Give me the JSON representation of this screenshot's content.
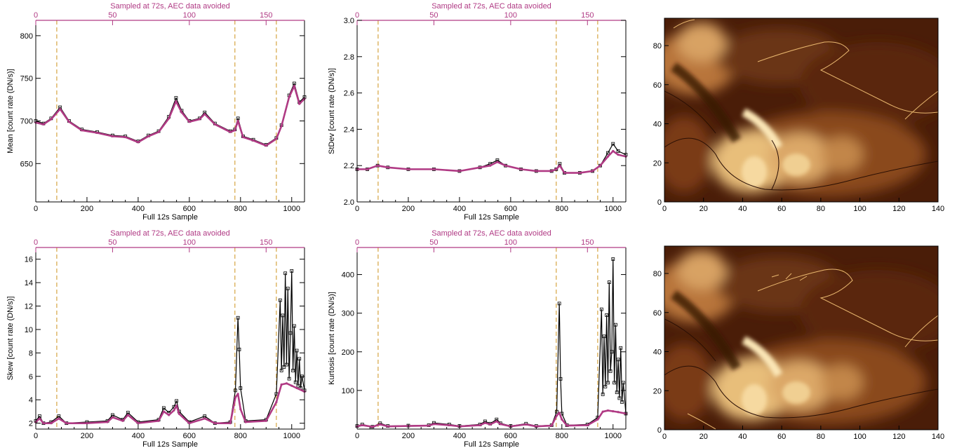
{
  "colors": {
    "axis": "#000000",
    "sampled": "#b03a84",
    "full": "#000000",
    "event_line": "#d6a543",
    "image_dark": "#3a1505",
    "image_mid": "#8a4a1c",
    "image_bright": "#f2d49a",
    "contour_light": "#e8b66e",
    "contour_dark": "#2a0f04"
  },
  "chart_data": [
    {
      "id": "mean",
      "type": "line",
      "top_label": "Sampled at 72s, AEC data avoided",
      "xlabel": "Full 12s Sample",
      "ylabel": "Mean [count rate (DN/s)]",
      "xlim": [
        0,
        1050
      ],
      "ylim": [
        605,
        818
      ],
      "xticks": [
        0,
        200,
        400,
        600,
        800,
        1000
      ],
      "yticks": [
        650,
        700,
        750,
        800
      ],
      "top_xlim": [
        0,
        175
      ],
      "top_xticks": [
        0,
        50,
        100,
        150
      ],
      "vlines": [
        82,
        778,
        940
      ],
      "series": [
        {
          "style": "full",
          "x": [
            0,
            30,
            60,
            95,
            130,
            180,
            240,
            300,
            350,
            400,
            440,
            480,
            520,
            548,
            570,
            600,
            640,
            660,
            700,
            760,
            778,
            790,
            810,
            850,
            900,
            940,
            960,
            990,
            1010,
            1030,
            1050
          ],
          "y": [
            700,
            697,
            703,
            716,
            700,
            690,
            687,
            683,
            682,
            676,
            683,
            688,
            705,
            727,
            712,
            700,
            703,
            710,
            697,
            688,
            690,
            703,
            682,
            678,
            672,
            680,
            695,
            730,
            744,
            722,
            728
          ]
        },
        {
          "style": "sampled",
          "x": [
            0,
            30,
            60,
            95,
            130,
            180,
            240,
            300,
            350,
            400,
            440,
            480,
            520,
            548,
            570,
            600,
            640,
            660,
            700,
            760,
            778,
            790,
            810,
            850,
            900,
            940,
            960,
            990,
            1010,
            1030,
            1050
          ],
          "y": [
            698,
            696,
            702,
            714,
            699,
            689,
            686,
            682,
            681,
            675,
            682,
            687,
            703,
            723,
            710,
            699,
            702,
            708,
            696,
            687,
            689,
            700,
            681,
            677,
            671,
            679,
            694,
            728,
            741,
            720,
            726
          ]
        }
      ]
    },
    {
      "id": "stdev",
      "type": "line",
      "top_label": "Sampled at 72s, AEC data avoided",
      "xlabel": "Full 12s Sample",
      "ylabel": "StDev [count rate (DN/s)]",
      "xlim": [
        0,
        1050
      ],
      "ylim": [
        2.0,
        3.0
      ],
      "xticks": [
        0,
        200,
        400,
        600,
        800,
        1000
      ],
      "yticks": [
        2.0,
        2.2,
        2.4,
        2.6,
        2.8,
        3.0
      ],
      "top_xlim": [
        0,
        175
      ],
      "top_xticks": [
        0,
        50,
        100,
        150
      ],
      "vlines": [
        82,
        778,
        940
      ],
      "series": [
        {
          "style": "full",
          "x": [
            0,
            40,
            80,
            120,
            200,
            300,
            400,
            480,
            520,
            548,
            580,
            640,
            700,
            760,
            778,
            792,
            810,
            870,
            920,
            950,
            980,
            1000,
            1020,
            1050
          ],
          "y": [
            2.18,
            2.18,
            2.2,
            2.19,
            2.18,
            2.18,
            2.17,
            2.19,
            2.21,
            2.23,
            2.2,
            2.18,
            2.17,
            2.17,
            2.18,
            2.21,
            2.16,
            2.16,
            2.17,
            2.2,
            2.27,
            2.32,
            2.28,
            2.26
          ]
        },
        {
          "style": "sampled",
          "x": [
            0,
            40,
            80,
            120,
            200,
            300,
            400,
            480,
            520,
            548,
            580,
            640,
            700,
            760,
            778,
            792,
            810,
            870,
            920,
            950,
            980,
            1000,
            1020,
            1050
          ],
          "y": [
            2.18,
            2.18,
            2.2,
            2.19,
            2.18,
            2.18,
            2.17,
            2.19,
            2.2,
            2.22,
            2.2,
            2.18,
            2.17,
            2.17,
            2.18,
            2.2,
            2.16,
            2.16,
            2.17,
            2.2,
            2.25,
            2.28,
            2.26,
            2.25
          ]
        }
      ]
    },
    {
      "id": "skew",
      "type": "line",
      "top_label": "Sampled at 72s, AEC data avoided",
      "xlabel": "Full 12s Sample",
      "ylabel": "Skew [count rate (DN/s)]",
      "xlim": [
        0,
        1050
      ],
      "ylim": [
        1.5,
        17
      ],
      "xticks": [
        0,
        200,
        400,
        600,
        800,
        1000
      ],
      "yticks": [
        2,
        4,
        6,
        8,
        10,
        12,
        14,
        16
      ],
      "top_xlim": [
        0,
        175
      ],
      "top_xticks": [
        0,
        50,
        100,
        150
      ],
      "vlines": [
        82,
        778,
        940
      ],
      "series": [
        {
          "style": "full",
          "x": [
            0,
            15,
            30,
            60,
            90,
            120,
            200,
            280,
            300,
            340,
            360,
            400,
            480,
            500,
            520,
            540,
            550,
            560,
            600,
            660,
            700,
            760,
            780,
            790,
            795,
            800,
            820,
            900,
            940,
            955,
            960,
            965,
            970,
            975,
            980,
            985,
            990,
            995,
            1000,
            1005,
            1010,
            1015,
            1020,
            1025,
            1030,
            1035,
            1040,
            1050
          ],
          "y": [
            2.2,
            2.6,
            2.0,
            2.1,
            2.6,
            2.0,
            2.1,
            2.2,
            2.7,
            2.3,
            2.9,
            2.1,
            2.3,
            3.3,
            2.9,
            3.4,
            3.9,
            3.0,
            2.1,
            2.6,
            2.0,
            2.1,
            4.8,
            11.0,
            8.3,
            5.0,
            2.2,
            2.3,
            4.5,
            12.5,
            6.5,
            11.2,
            6.8,
            14.8,
            7.0,
            13.5,
            5.8,
            9.7,
            15.0,
            6.5,
            10.3,
            5.5,
            8.2,
            5.2,
            7.5,
            5.0,
            6.0,
            4.8
          ]
        },
        {
          "style": "sampled",
          "x": [
            0,
            15,
            30,
            60,
            90,
            120,
            200,
            280,
            300,
            340,
            360,
            400,
            480,
            500,
            520,
            540,
            550,
            560,
            600,
            660,
            700,
            760,
            780,
            790,
            800,
            820,
            900,
            940,
            960,
            980,
            1000,
            1020,
            1050
          ],
          "y": [
            2.1,
            2.4,
            2.0,
            2.0,
            2.4,
            2.0,
            2.0,
            2.1,
            2.5,
            2.2,
            2.7,
            2.0,
            2.2,
            3.0,
            2.7,
            3.1,
            3.5,
            2.8,
            2.0,
            2.4,
            2.0,
            2.0,
            4.2,
            4.5,
            3.2,
            2.1,
            2.2,
            3.8,
            5.3,
            5.4,
            5.2,
            5.0,
            4.7
          ]
        }
      ]
    },
    {
      "id": "kurtosis",
      "type": "line",
      "top_label": "Sampled at 72s, AEC data avoided",
      "xlabel": "Full 12s Sample",
      "ylabel": "Kurtosis [count rate (DN/s)]",
      "xlim": [
        0,
        1050
      ],
      "ylim": [
        0,
        470
      ],
      "xticks": [
        0,
        200,
        400,
        600,
        800,
        1000
      ],
      "yticks": [
        100,
        200,
        300,
        400
      ],
      "top_xlim": [
        0,
        175
      ],
      "top_xticks": [
        0,
        50,
        100,
        150
      ],
      "vlines": [
        82,
        778,
        940
      ],
      "series": [
        {
          "style": "full",
          "x": [
            0,
            20,
            60,
            90,
            120,
            200,
            280,
            300,
            360,
            400,
            480,
            500,
            520,
            545,
            560,
            600,
            660,
            700,
            760,
            780,
            790,
            795,
            800,
            820,
            900,
            940,
            955,
            960,
            965,
            970,
            975,
            980,
            985,
            990,
            995,
            1000,
            1005,
            1010,
            1015,
            1020,
            1025,
            1030,
            1035,
            1040,
            1050
          ],
          "y": [
            8,
            12,
            6,
            15,
            8,
            9,
            10,
            16,
            12,
            8,
            12,
            20,
            14,
            25,
            15,
            8,
            14,
            8,
            10,
            45,
            325,
            130,
            40,
            10,
            12,
            30,
            310,
            90,
            240,
            110,
            295,
            120,
            380,
            150,
            200,
            440,
            120,
            270,
            95,
            180,
            80,
            210,
            70,
            120,
            40
          ]
        },
        {
          "style": "sampled",
          "x": [
            0,
            20,
            60,
            90,
            120,
            200,
            280,
            300,
            360,
            400,
            480,
            500,
            520,
            545,
            560,
            600,
            660,
            700,
            760,
            780,
            790,
            800,
            820,
            900,
            940,
            960,
            980,
            1000,
            1020,
            1050
          ],
          "y": [
            7,
            10,
            6,
            12,
            7,
            8,
            9,
            13,
            10,
            7,
            10,
            16,
            12,
            20,
            13,
            7,
            12,
            7,
            9,
            35,
            42,
            25,
            9,
            10,
            25,
            45,
            48,
            46,
            44,
            40
          ]
        }
      ]
    }
  ],
  "image_panels": [
    {
      "id": "image-top",
      "xticks": [
        "0",
        "20",
        "40",
        "60",
        "80",
        "100",
        "120",
        "140"
      ],
      "yticks": [
        "0",
        "20",
        "40",
        "60",
        "80"
      ]
    },
    {
      "id": "image-bottom",
      "xticks": [
        "0",
        "20",
        "40",
        "60",
        "80",
        "100",
        "120",
        "140"
      ],
      "yticks": [
        "0",
        "20",
        "40",
        "60",
        "80"
      ]
    }
  ]
}
